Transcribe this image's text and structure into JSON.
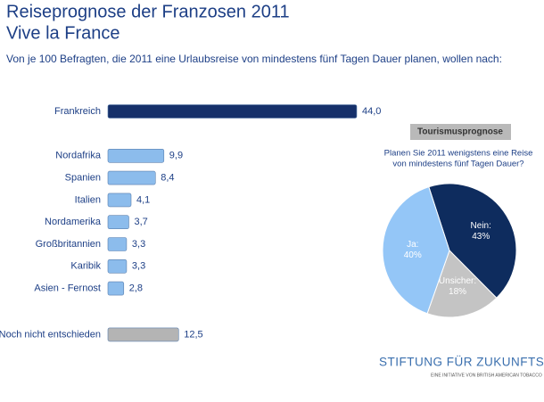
{
  "header": {
    "title_lines": [
      "Reiseprognose der Franzosen 2011",
      "Vive la France"
    ],
    "subtitle": "Von je 100 Befragten, die 2011 eine Urlaubsreise von mindestens fünf Tagen Dauer planen, wollen nach:"
  },
  "chart_data": [
    {
      "type": "bar",
      "orientation": "horizontal",
      "categories": [
        "Frankreich",
        "Nordafrika",
        "Spanien",
        "Italien",
        "Nordamerika",
        "Großbritannien",
        "Karibik",
        "Asien - Fernost",
        "Noch nicht entschieden"
      ],
      "values": [
        44.0,
        9.9,
        8.4,
        4.1,
        3.7,
        3.3,
        3.3,
        2.8,
        12.5
      ],
      "value_labels": [
        "44,0",
        "9,9",
        "8,4",
        "4,1",
        "3,7",
        "3,3",
        "3,3",
        "2,8",
        "12,5"
      ],
      "colors": [
        "#16306a",
        "#8cbcec",
        "#8cbcec",
        "#8cbcec",
        "#8cbcec",
        "#8cbcec",
        "#8cbcec",
        "#8cbcec",
        "#b4b4b4"
      ]
    },
    {
      "type": "pie",
      "title": "Tourismusprognose",
      "subtitle_lines": [
        "Planen Sie 2011 wenigstens eine Reise",
        "von mindestens fünf Tagen Dauer?"
      ],
      "categories": [
        "Nein:",
        "Unsicher:",
        "Ja:"
      ],
      "values": [
        43,
        18,
        40
      ],
      "value_labels": [
        "43%",
        "18%",
        "40%"
      ],
      "colors": [
        "#0e2c5e",
        "#c4c4c4",
        "#94c6f7"
      ]
    }
  ],
  "footer": {
    "brand": "STIFTUNG FÜR ZUKUNFTSFRAGEN",
    "tagline": "EINE INITIATIVE VON BRITISH AMERICAN TOBACCO"
  }
}
